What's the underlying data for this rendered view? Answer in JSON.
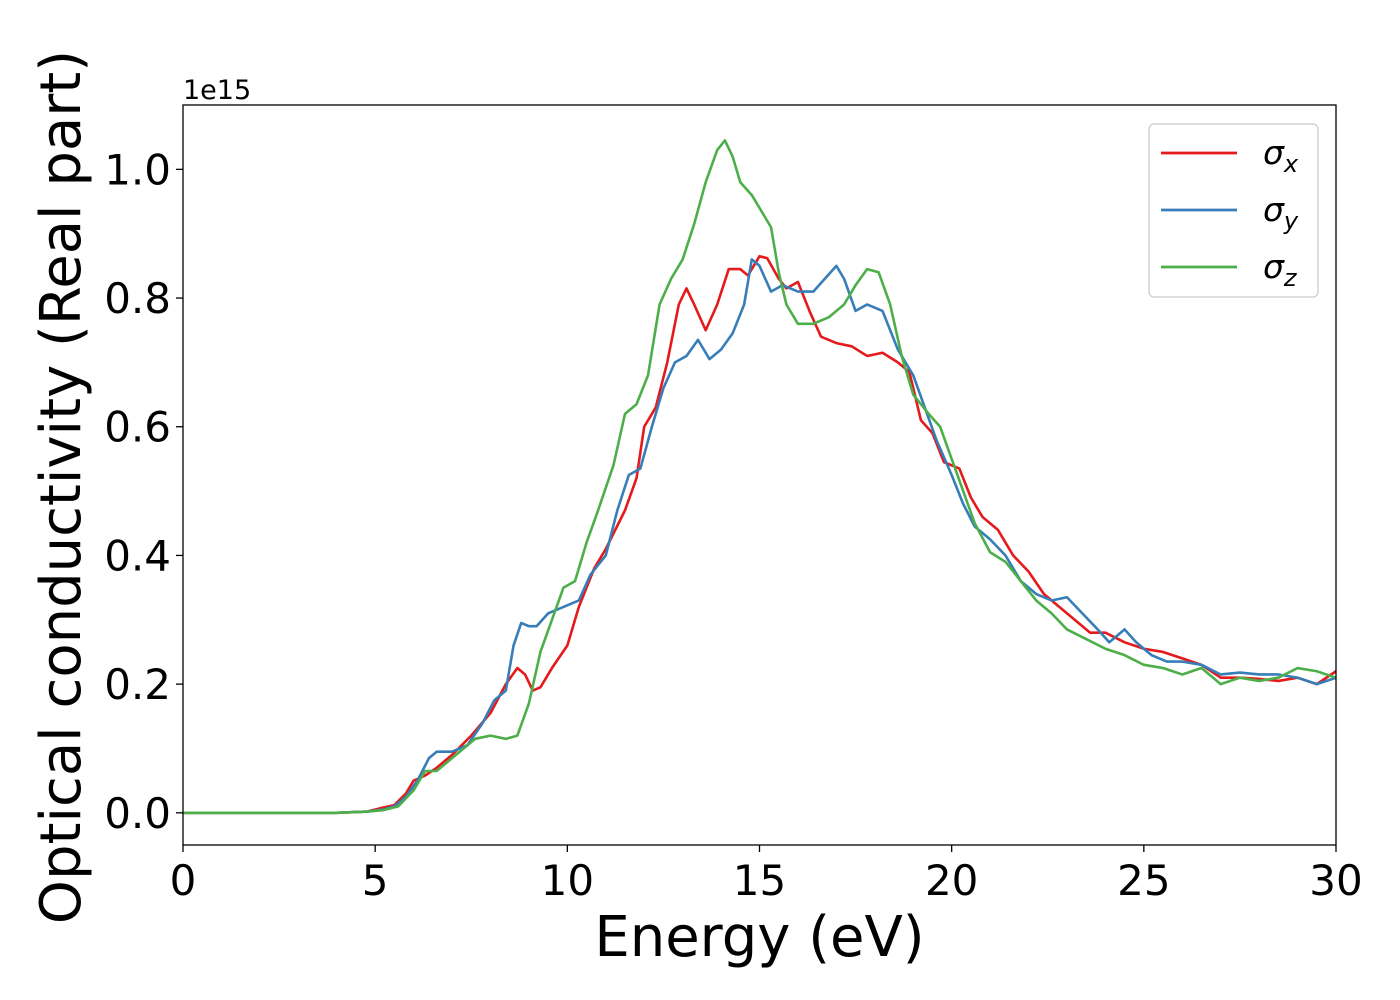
{
  "chart_data": {
    "type": "line",
    "title": "",
    "xlabel": "Energy (eV)",
    "ylabel": "Optical conductivity (Real part)",
    "y_offset_label": "1e15",
    "y_scale": 1000000000000000.0,
    "xlim": [
      0,
      30
    ],
    "ylim": [
      -0.05,
      1.1
    ],
    "x_ticks": [
      0,
      5,
      10,
      15,
      20,
      25,
      30
    ],
    "x_tick_labels": [
      "0",
      "5",
      "10",
      "15",
      "20",
      "25",
      "30"
    ],
    "y_ticks": [
      0.0,
      0.2,
      0.4,
      0.6,
      0.8,
      1.0
    ],
    "y_tick_labels": [
      "0.0",
      "0.2",
      "0.4",
      "0.6",
      "0.8",
      "1.0"
    ],
    "grid": false,
    "legend_position": "top-right",
    "series": [
      {
        "name": "σ",
        "subscript": "x",
        "color": "#e41a1c",
        "points": [
          [
            0,
            0
          ],
          [
            4,
            0
          ],
          [
            4.8,
            0.002
          ],
          [
            5.2,
            0.008
          ],
          [
            5.5,
            0.012
          ],
          [
            5.8,
            0.03
          ],
          [
            6,
            0.05
          ],
          [
            6.3,
            0.058
          ],
          [
            6.6,
            0.07
          ],
          [
            7,
            0.09
          ],
          [
            7.5,
            0.12
          ],
          [
            8,
            0.155
          ],
          [
            8.4,
            0.2
          ],
          [
            8.7,
            0.225
          ],
          [
            8.9,
            0.215
          ],
          [
            9.1,
            0.19
          ],
          [
            9.3,
            0.195
          ],
          [
            9.6,
            0.225
          ],
          [
            10,
            0.26
          ],
          [
            10.3,
            0.32
          ],
          [
            10.7,
            0.38
          ],
          [
            11,
            0.41
          ],
          [
            11.5,
            0.47
          ],
          [
            11.8,
            0.52
          ],
          [
            12,
            0.6
          ],
          [
            12.3,
            0.63
          ],
          [
            12.6,
            0.7
          ],
          [
            12.9,
            0.79
          ],
          [
            13.1,
            0.815
          ],
          [
            13.3,
            0.79
          ],
          [
            13.6,
            0.75
          ],
          [
            13.9,
            0.79
          ],
          [
            14.2,
            0.845
          ],
          [
            14.5,
            0.845
          ],
          [
            14.7,
            0.835
          ],
          [
            15,
            0.865
          ],
          [
            15.2,
            0.862
          ],
          [
            15.5,
            0.83
          ],
          [
            15.7,
            0.815
          ],
          [
            16,
            0.825
          ],
          [
            16.3,
            0.78
          ],
          [
            16.6,
            0.74
          ],
          [
            17,
            0.73
          ],
          [
            17.4,
            0.725
          ],
          [
            17.8,
            0.71
          ],
          [
            18.2,
            0.715
          ],
          [
            18.6,
            0.7
          ],
          [
            18.9,
            0.685
          ],
          [
            19.2,
            0.61
          ],
          [
            19.5,
            0.59
          ],
          [
            19.8,
            0.545
          ],
          [
            20.2,
            0.535
          ],
          [
            20.5,
            0.49
          ],
          [
            20.8,
            0.46
          ],
          [
            21.2,
            0.44
          ],
          [
            21.6,
            0.4
          ],
          [
            22,
            0.375
          ],
          [
            22.4,
            0.34
          ],
          [
            22.8,
            0.32
          ],
          [
            23.2,
            0.3
          ],
          [
            23.6,
            0.28
          ],
          [
            24,
            0.28
          ],
          [
            24.5,
            0.265
          ],
          [
            25,
            0.255
          ],
          [
            25.5,
            0.25
          ],
          [
            26,
            0.24
          ],
          [
            26.5,
            0.23
          ],
          [
            27,
            0.21
          ],
          [
            27.5,
            0.21
          ],
          [
            28,
            0.208
          ],
          [
            28.5,
            0.205
          ],
          [
            29,
            0.21
          ],
          [
            29.5,
            0.2
          ],
          [
            30,
            0.22
          ]
        ]
      },
      {
        "name": "σ",
        "subscript": "y",
        "color": "#377eb8",
        "points": [
          [
            0,
            0
          ],
          [
            4,
            0
          ],
          [
            4.8,
            0.002
          ],
          [
            5.2,
            0.005
          ],
          [
            5.5,
            0.01
          ],
          [
            5.8,
            0.025
          ],
          [
            6.1,
            0.05
          ],
          [
            6.4,
            0.085
          ],
          [
            6.6,
            0.095
          ],
          [
            7,
            0.095
          ],
          [
            7.4,
            0.105
          ],
          [
            7.8,
            0.14
          ],
          [
            8.1,
            0.175
          ],
          [
            8.4,
            0.19
          ],
          [
            8.6,
            0.26
          ],
          [
            8.8,
            0.295
          ],
          [
            9,
            0.29
          ],
          [
            9.2,
            0.29
          ],
          [
            9.5,
            0.31
          ],
          [
            9.9,
            0.32
          ],
          [
            10.3,
            0.33
          ],
          [
            10.6,
            0.37
          ],
          [
            11,
            0.4
          ],
          [
            11.3,
            0.47
          ],
          [
            11.6,
            0.525
          ],
          [
            11.9,
            0.535
          ],
          [
            12.2,
            0.6
          ],
          [
            12.5,
            0.66
          ],
          [
            12.8,
            0.7
          ],
          [
            13.1,
            0.71
          ],
          [
            13.4,
            0.735
          ],
          [
            13.7,
            0.705
          ],
          [
            14,
            0.72
          ],
          [
            14.3,
            0.745
          ],
          [
            14.6,
            0.79
          ],
          [
            14.8,
            0.86
          ],
          [
            15,
            0.85
          ],
          [
            15.3,
            0.81
          ],
          [
            15.6,
            0.82
          ],
          [
            16,
            0.81
          ],
          [
            16.4,
            0.81
          ],
          [
            16.7,
            0.83
          ],
          [
            17,
            0.85
          ],
          [
            17.2,
            0.83
          ],
          [
            17.5,
            0.78
          ],
          [
            17.8,
            0.79
          ],
          [
            18.2,
            0.78
          ],
          [
            18.6,
            0.72
          ],
          [
            19,
            0.68
          ],
          [
            19.3,
            0.63
          ],
          [
            19.6,
            0.58
          ],
          [
            20,
            0.525
          ],
          [
            20.3,
            0.48
          ],
          [
            20.6,
            0.445
          ],
          [
            21,
            0.425
          ],
          [
            21.4,
            0.4
          ],
          [
            21.8,
            0.36
          ],
          [
            22.2,
            0.34
          ],
          [
            22.6,
            0.33
          ],
          [
            23,
            0.335
          ],
          [
            23.4,
            0.31
          ],
          [
            23.8,
            0.285
          ],
          [
            24.1,
            0.265
          ],
          [
            24.5,
            0.285
          ],
          [
            24.8,
            0.265
          ],
          [
            25.2,
            0.245
          ],
          [
            25.6,
            0.235
          ],
          [
            26,
            0.235
          ],
          [
            26.5,
            0.23
          ],
          [
            27,
            0.215
          ],
          [
            27.5,
            0.218
          ],
          [
            28,
            0.215
          ],
          [
            28.5,
            0.215
          ],
          [
            29,
            0.21
          ],
          [
            29.5,
            0.2
          ],
          [
            30,
            0.21
          ]
        ]
      },
      {
        "name": "σ",
        "subscript": "z",
        "color": "#4daf4a",
        "points": [
          [
            0,
            0
          ],
          [
            4,
            0
          ],
          [
            4.8,
            0.002
          ],
          [
            5.2,
            0.004
          ],
          [
            5.6,
            0.01
          ],
          [
            6,
            0.035
          ],
          [
            6.3,
            0.065
          ],
          [
            6.6,
            0.065
          ],
          [
            7,
            0.085
          ],
          [
            7.3,
            0.1
          ],
          [
            7.6,
            0.115
          ],
          [
            8,
            0.12
          ],
          [
            8.4,
            0.115
          ],
          [
            8.7,
            0.12
          ],
          [
            9,
            0.17
          ],
          [
            9.3,
            0.25
          ],
          [
            9.6,
            0.3
          ],
          [
            9.9,
            0.35
          ],
          [
            10.2,
            0.36
          ],
          [
            10.5,
            0.42
          ],
          [
            10.8,
            0.47
          ],
          [
            11.2,
            0.54
          ],
          [
            11.5,
            0.62
          ],
          [
            11.8,
            0.635
          ],
          [
            12.1,
            0.68
          ],
          [
            12.4,
            0.79
          ],
          [
            12.7,
            0.83
          ],
          [
            13,
            0.86
          ],
          [
            13.3,
            0.915
          ],
          [
            13.6,
            0.98
          ],
          [
            13.9,
            1.03
          ],
          [
            14.1,
            1.045
          ],
          [
            14.3,
            1.02
          ],
          [
            14.5,
            0.98
          ],
          [
            14.8,
            0.96
          ],
          [
            15.1,
            0.93
          ],
          [
            15.3,
            0.91
          ],
          [
            15.5,
            0.84
          ],
          [
            15.7,
            0.79
          ],
          [
            16,
            0.76
          ],
          [
            16.4,
            0.76
          ],
          [
            16.8,
            0.77
          ],
          [
            17.2,
            0.79
          ],
          [
            17.5,
            0.82
          ],
          [
            17.8,
            0.845
          ],
          [
            18.1,
            0.84
          ],
          [
            18.4,
            0.79
          ],
          [
            18.7,
            0.71
          ],
          [
            19,
            0.65
          ],
          [
            19.4,
            0.62
          ],
          [
            19.7,
            0.6
          ],
          [
            20,
            0.55
          ],
          [
            20.3,
            0.5
          ],
          [
            20.6,
            0.45
          ],
          [
            21,
            0.405
          ],
          [
            21.4,
            0.39
          ],
          [
            21.8,
            0.36
          ],
          [
            22.2,
            0.33
          ],
          [
            22.6,
            0.31
          ],
          [
            23,
            0.285
          ],
          [
            23.5,
            0.27
          ],
          [
            24,
            0.255
          ],
          [
            24.5,
            0.245
          ],
          [
            25,
            0.23
          ],
          [
            25.5,
            0.225
          ],
          [
            26,
            0.215
          ],
          [
            26.5,
            0.225
          ],
          [
            27,
            0.2
          ],
          [
            27.5,
            0.21
          ],
          [
            28,
            0.205
          ],
          [
            28.5,
            0.21
          ],
          [
            29,
            0.225
          ],
          [
            29.5,
            0.22
          ],
          [
            30,
            0.21
          ]
        ]
      }
    ]
  }
}
